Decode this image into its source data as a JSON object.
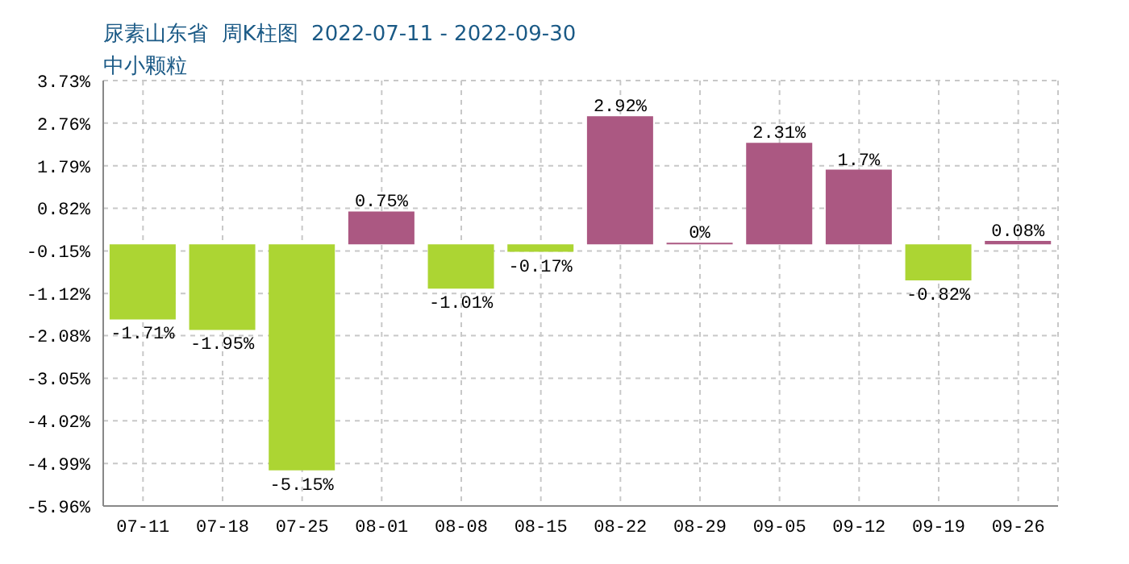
{
  "chart_data": {
    "type": "bar",
    "title": "尿素山东省  周K柱图  2022-07-11 - 2022-09-30",
    "subtitle": "中小颗粒",
    "categories": [
      "07-11",
      "07-18",
      "07-25",
      "08-01",
      "08-08",
      "08-15",
      "08-22",
      "08-29",
      "09-05",
      "09-12",
      "09-19",
      "09-26"
    ],
    "values": [
      -1.71,
      -1.95,
      -5.15,
      0.75,
      -1.01,
      -0.17,
      2.92,
      0,
      2.31,
      1.7,
      -0.82,
      0.08
    ],
    "colors": [
      "#acd533",
      "#acd533",
      "#acd533",
      "#ab5882",
      "#acd533",
      "#acd533",
      "#ab5882",
      "#ab5882",
      "#ab5882",
      "#ab5882",
      "#acd533",
      "#ab5882"
    ],
    "value_labels": [
      "-1.71%",
      "-1.95%",
      "-5.15%",
      "0.75%",
      "-1.01%",
      "-0.17%",
      "2.92%",
      "0%",
      "2.31%",
      "1.7%",
      "-0.82%",
      "0.08%"
    ],
    "ylim": [
      -5.96,
      3.73
    ],
    "yticks": [
      {
        "value": 3.73,
        "label": "3.73%"
      },
      {
        "value": 2.76,
        "label": "2.76%"
      },
      {
        "value": 1.79,
        "label": "1.79%"
      },
      {
        "value": 0.82,
        "label": "0.82%"
      },
      {
        "value": -0.15,
        "label": "-0.15%"
      },
      {
        "value": -1.12,
        "label": "-1.12%"
      },
      {
        "value": -2.08,
        "label": "-2.08%"
      },
      {
        "value": -3.05,
        "label": "-3.05%"
      },
      {
        "value": -4.02,
        "label": "-4.02%"
      },
      {
        "value": -4.99,
        "label": "-4.99%"
      },
      {
        "value": -5.96,
        "label": "-5.96%"
      }
    ],
    "grid": true
  }
}
